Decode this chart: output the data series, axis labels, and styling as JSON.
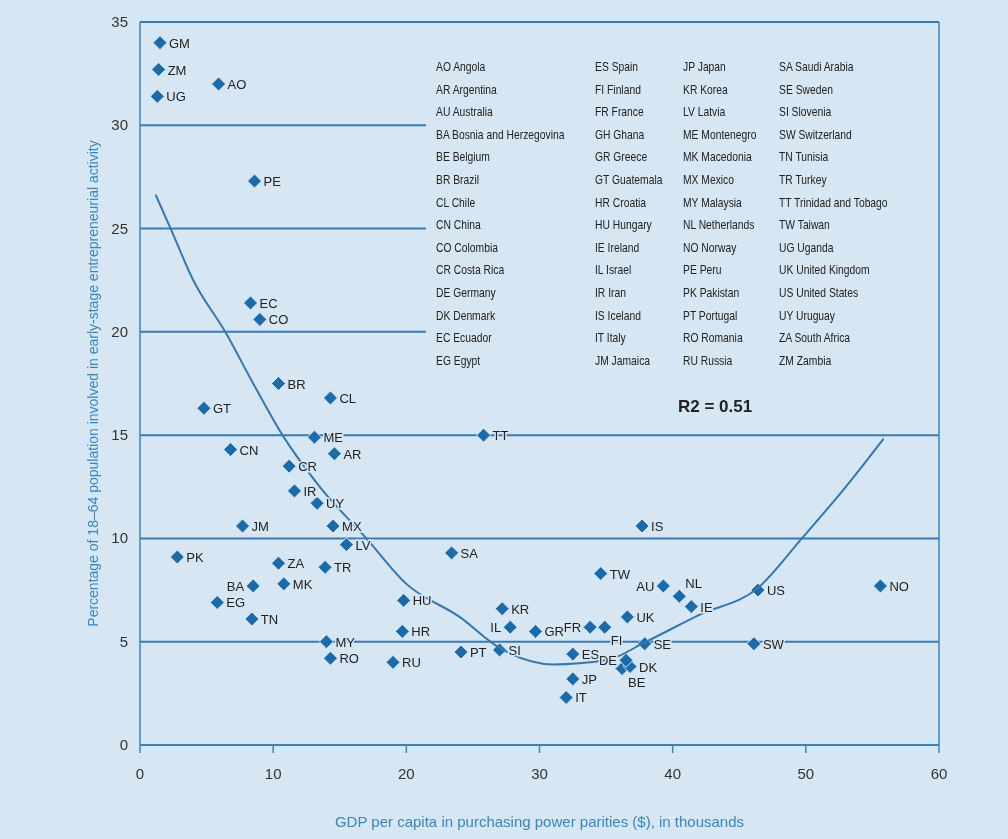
{
  "chart_data": {
    "type": "scatter",
    "xlabel": "GDP per capita in purchasing power parities ($), in thousands",
    "ylabel": "Percentage of 18–64 population involved in early-stage entrepreneurial activity",
    "xlim": [
      0,
      60
    ],
    "xticks": [
      0,
      10,
      20,
      30,
      40,
      50,
      60
    ],
    "ylim": [
      0,
      35
    ],
    "yticks": [
      0,
      5,
      10,
      15,
      20,
      25,
      30,
      35
    ],
    "grid": "y",
    "marker": "diamond",
    "series": [
      {
        "type": "scatter",
        "color": "#1b6aaa",
        "x": [
          1.5,
          1.4,
          1.3,
          5.9,
          8.6,
          8.3,
          9.0,
          10.4,
          14.3,
          4.8,
          13.1,
          14.6,
          6.8,
          11.2,
          11.6,
          13.3,
          7.7,
          14.5,
          15.5,
          2.8,
          10.4,
          13.9,
          8.5,
          10.8,
          5.8,
          8.4,
          19.8,
          19.7,
          14.0,
          14.3,
          19.0,
          24.1,
          23.4,
          25.8,
          27.0,
          27.2,
          27.8,
          29.7,
          33.8,
          34.9,
          32.5,
          32.5,
          32.0,
          36.2,
          36.8,
          36.5,
          34.6,
          36.6,
          37.7,
          37.9,
          39.3,
          40.5,
          41.4,
          46.4,
          46.1,
          55.6
        ],
        "values": [
          34.0,
          32.7,
          31.4,
          32.0,
          27.3,
          21.4,
          20.6,
          17.5,
          16.8,
          16.3,
          14.9,
          14.1,
          14.3,
          13.5,
          12.3,
          11.7,
          10.6,
          10.6,
          9.7,
          9.1,
          8.8,
          8.6,
          7.7,
          7.8,
          6.9,
          6.1,
          7.0,
          5.5,
          5.0,
          4.2,
          4.0,
          4.5,
          9.3,
          15.0,
          4.6,
          6.6,
          5.7,
          5.5,
          5.7,
          5.7,
          4.4,
          3.2,
          2.3,
          3.7,
          3.8,
          4.1,
          8.3,
          6.2,
          10.6,
          4.9,
          7.7,
          7.2,
          6.7,
          7.5,
          4.9,
          7.7
        ]
      },
      {
        "type": "line",
        "color": "#3478b2",
        "marker": "none",
        "line_style": "solid",
        "x": [
          1.2,
          2.3,
          4,
          6.4,
          8.5,
          10.7,
          13.5,
          17,
          20,
          24,
          27,
          31,
          35,
          38,
          42,
          46.4,
          49.7,
          53,
          55.8
        ],
        "values": [
          26.6,
          25,
          22.5,
          20,
          17.5,
          15,
          12.5,
          10,
          7.8,
          6.2,
          4.7,
          3.9,
          4.1,
          5,
          6.3,
          7.6,
          10,
          12.5,
          14.8
        ]
      }
    ],
    "annotations": [
      {
        "text": "GM",
        "x": 1.5,
        "y": 34.0
      },
      {
        "text": "ZM",
        "x": 1.4,
        "y": 32.7
      },
      {
        "text": "UG",
        "x": 1.3,
        "y": 31.4
      },
      {
        "text": "AO",
        "x": 5.9,
        "y": 32.0
      },
      {
        "text": "PE",
        "x": 8.6,
        "y": 27.3
      },
      {
        "text": "EC",
        "x": 8.3,
        "y": 21.4
      },
      {
        "text": "CO",
        "x": 9.0,
        "y": 20.6
      },
      {
        "text": "BR",
        "x": 10.4,
        "y": 17.5
      },
      {
        "text": "CL",
        "x": 14.3,
        "y": 16.8
      },
      {
        "text": "GT",
        "x": 4.8,
        "y": 16.3
      },
      {
        "text": "ME",
        "x": 13.1,
        "y": 14.9
      },
      {
        "text": "AR",
        "x": 14.6,
        "y": 14.1
      },
      {
        "text": "CN",
        "x": 6.8,
        "y": 14.3
      },
      {
        "text": "CR",
        "x": 11.2,
        "y": 13.5
      },
      {
        "text": "IR",
        "x": 11.6,
        "y": 12.3
      },
      {
        "text": "UY",
        "x": 13.3,
        "y": 11.7
      },
      {
        "text": "JM",
        "x": 7.7,
        "y": 10.6
      },
      {
        "text": "MX",
        "x": 14.5,
        "y": 10.6
      },
      {
        "text": "LV",
        "x": 15.5,
        "y": 9.7
      },
      {
        "text": "PK",
        "x": 2.8,
        "y": 9.1
      },
      {
        "text": "ZA",
        "x": 10.4,
        "y": 8.8
      },
      {
        "text": "TR",
        "x": 13.9,
        "y": 8.6
      },
      {
        "text": "BA",
        "x": 8.5,
        "y": 7.7
      },
      {
        "text": "MK",
        "x": 10.8,
        "y": 7.8
      },
      {
        "text": "EG",
        "x": 5.8,
        "y": 6.9
      },
      {
        "text": "TN",
        "x": 8.4,
        "y": 6.1
      },
      {
        "text": "HU",
        "x": 19.8,
        "y": 7.0
      },
      {
        "text": "HR",
        "x": 19.7,
        "y": 5.5
      },
      {
        "text": "MY",
        "x": 14.0,
        "y": 5.0
      },
      {
        "text": "RO",
        "x": 14.3,
        "y": 4.2
      },
      {
        "text": "RU",
        "x": 19.0,
        "y": 4.0
      },
      {
        "text": "PT",
        "x": 24.1,
        "y": 4.5
      },
      {
        "text": "SA",
        "x": 23.4,
        "y": 9.3
      },
      {
        "text": "TT",
        "x": 25.8,
        "y": 15.0
      },
      {
        "text": "SI",
        "x": 27.0,
        "y": 4.6
      },
      {
        "text": "KR",
        "x": 27.2,
        "y": 6.6
      },
      {
        "text": "IL",
        "x": 27.8,
        "y": 5.7
      },
      {
        "text": "GR",
        "x": 29.7,
        "y": 5.5
      },
      {
        "text": "FR",
        "x": 33.8,
        "y": 5.7
      },
      {
        "text": "FI",
        "x": 34.9,
        "y": 5.7
      },
      {
        "text": "ES",
        "x": 32.5,
        "y": 4.4
      },
      {
        "text": "JP",
        "x": 32.5,
        "y": 3.2
      },
      {
        "text": "IT",
        "x": 32.0,
        "y": 2.3
      },
      {
        "text": "BE",
        "x": 36.2,
        "y": 3.7
      },
      {
        "text": "DK",
        "x": 36.8,
        "y": 3.8
      },
      {
        "text": "DE",
        "x": 36.5,
        "y": 4.1
      },
      {
        "text": "TW",
        "x": 34.6,
        "y": 8.3
      },
      {
        "text": "UK",
        "x": 36.6,
        "y": 6.2
      },
      {
        "text": "IS",
        "x": 37.7,
        "y": 10.6
      },
      {
        "text": "SE",
        "x": 37.9,
        "y": 4.9
      },
      {
        "text": "AU",
        "x": 39.3,
        "y": 7.7
      },
      {
        "text": "NL",
        "x": 40.5,
        "y": 7.2
      },
      {
        "text": "IE",
        "x": 41.4,
        "y": 6.7
      },
      {
        "text": "US",
        "x": 46.4,
        "y": 7.5
      },
      {
        "text": "SW",
        "x": 46.1,
        "y": 4.9
      },
      {
        "text": "NO",
        "x": 55.6,
        "y": 7.7
      },
      "R2 = 0.51",
      "AO Angola",
      "AR Argentina",
      "AU Australia",
      "BA Bosnia and Herzegovina",
      "BE Belgium",
      "BR Brazil",
      "CL Chile",
      "CN China",
      "CO Colombia",
      "CR Costa Rica",
      "DE Germany",
      "DK Denmark",
      "EC Ecuador",
      "EG Egypt",
      "ES Spain",
      "FI Finland",
      "FR France",
      "GH Ghana",
      "GR Greece",
      "GT Guatemala",
      "HR Croatia",
      "HU Hungary",
      "IE Ireland",
      "IL Israel",
      "IR Iran",
      "IS Iceland",
      "IT Italy",
      "JM Jamaica",
      "JP Japan",
      "KR Korea",
      "LV Latvia",
      "ME Montenegro",
      "MK Macedonia",
      "MX Mexico",
      "MY Malaysia",
      "NL Netherlands",
      "NO Norway",
      "PE Peru",
      "PK Pakistan",
      "PT Portugal",
      "RO Romania",
      "RU Russia",
      "SA Saudi Arabia",
      "SE Sweden",
      "SI Slovenia",
      "SW Switzerland",
      "TN Tunisia",
      "TR Turkey",
      "TT Trinidad and Tobago",
      "TW Taiwan",
      "UG Uganda",
      "UK United Kingdom",
      "US United States",
      "UY Uruguay",
      "ZA South Africa",
      "ZM Zambia"
    ]
  }
}
